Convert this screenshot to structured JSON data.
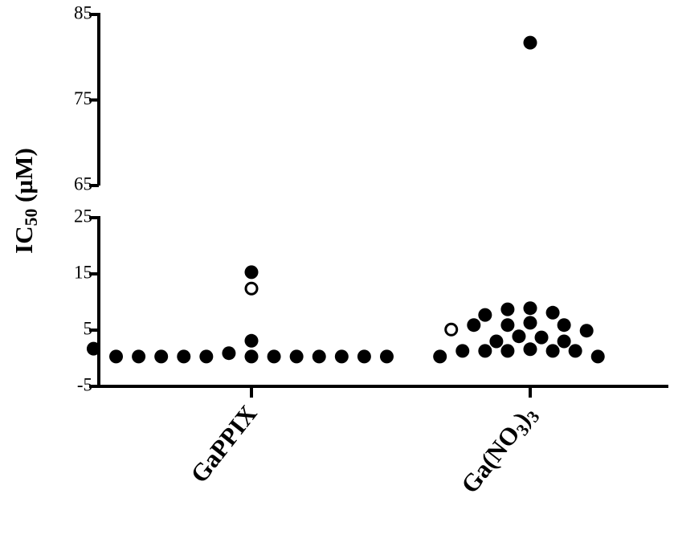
{
  "chart_data": {
    "type": "scatter",
    "y_label": "IC50 (µM)",
    "categories": [
      "GaPPIX",
      "Ga(NO3)3"
    ],
    "ylim": [
      -5,
      25
    ],
    "yticks": [
      -5,
      5,
      15,
      25
    ],
    "upper_ylim": [
      65,
      85
    ],
    "upper_yticks": [
      65,
      75,
      85
    ],
    "series": [
      {
        "marker": "filled",
        "color": "#000000",
        "values": [
          [
            15.3,
            3.1,
            0.3,
            0.9,
            0.3,
            0.3,
            0.3,
            0.3,
            0.3,
            0.3,
            0.3,
            0.3,
            0.3,
            0.3,
            0.3,
            1.7
          ],
          [
            81.7,
            8.9,
            8.7,
            8.1,
            7.7,
            6.3,
            5.9,
            5.9,
            5.9,
            4.9,
            3.9,
            3.7,
            3.0,
            3.0,
            1.6,
            1.3,
            1.3,
            1.3,
            1.3,
            1.3,
            0.3,
            0.3
          ]
        ]
      },
      {
        "marker": "open",
        "color": "#000000",
        "values": [
          [
            12.4
          ],
          [
            5.1
          ]
        ]
      }
    ]
  }
}
